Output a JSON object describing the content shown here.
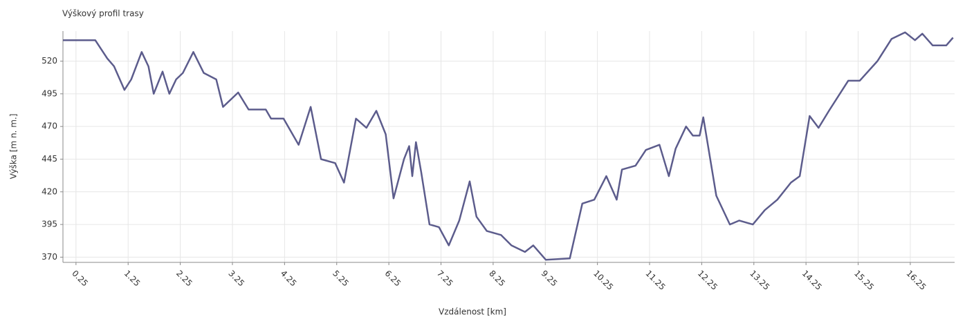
{
  "chart_data": {
    "type": "line",
    "title": "Výškový profil trasy",
    "x_label": "Vzdálenost [km]",
    "y_label": "Výška [m n. m.]",
    "xlim": [
      0,
      17.1
    ],
    "ylim": [
      366,
      543
    ],
    "xticks": [
      0.25,
      1.25,
      2.25,
      3.25,
      4.25,
      5.25,
      6.25,
      7.25,
      8.25,
      9.25,
      10.25,
      11.25,
      12.25,
      13.25,
      14.25,
      15.25,
      16.25
    ],
    "yticks": [
      370,
      395,
      420,
      445,
      470,
      495,
      520
    ],
    "grid": true,
    "series": [
      {
        "name": "Výška",
        "color": "#5c5c8c",
        "x": [
          0,
          0.62,
          0.85,
          0.98,
          1.18,
          1.31,
          1.51,
          1.64,
          1.74,
          1.91,
          2.04,
          2.17,
          2.3,
          2.5,
          2.7,
          2.94,
          3.07,
          3.36,
          3.56,
          3.89,
          3.99,
          4.23,
          4.52,
          4.75,
          4.95,
          5.22,
          5.39,
          5.62,
          5.82,
          6.01,
          6.19,
          6.34,
          6.54,
          6.64,
          6.7,
          6.77,
          6.87,
          7.03,
          7.21,
          7.4,
          7.6,
          7.8,
          7.93,
          8.13,
          8.4,
          8.6,
          8.86,
          9.02,
          9.26,
          9.72,
          9.96,
          10.19,
          10.42,
          10.62,
          10.72,
          10.98,
          11.18,
          11.44,
          11.62,
          11.75,
          11.95,
          12.08,
          12.21,
          12.28,
          12.53,
          12.79,
          12.97,
          13.23,
          13.46,
          13.7,
          13.96,
          14.13,
          14.32,
          14.49,
          14.69,
          15.06,
          15.28,
          15.62,
          15.89,
          16.15,
          16.34,
          16.48,
          16.68,
          16.94,
          17.07
        ],
        "values": [
          536,
          536,
          522,
          516,
          498,
          506,
          527,
          516,
          495,
          512,
          495,
          506,
          511,
          527,
          511,
          506,
          485,
          496,
          483,
          483,
          476,
          476,
          456,
          485,
          445,
          442,
          427,
          476,
          469,
          482,
          464,
          415,
          445,
          455,
          432,
          458,
          435,
          395,
          393,
          379,
          398,
          428,
          401,
          390,
          387,
          379,
          374,
          379,
          368,
          369,
          411,
          414,
          432,
          414,
          437,
          440,
          452,
          456,
          432,
          453,
          470,
          463,
          463,
          477,
          417,
          395,
          398,
          395,
          406,
          414,
          427,
          432,
          478,
          469,
          482,
          505,
          505,
          520,
          537,
          542,
          536,
          541,
          532,
          532,
          538
        ]
      }
    ]
  }
}
